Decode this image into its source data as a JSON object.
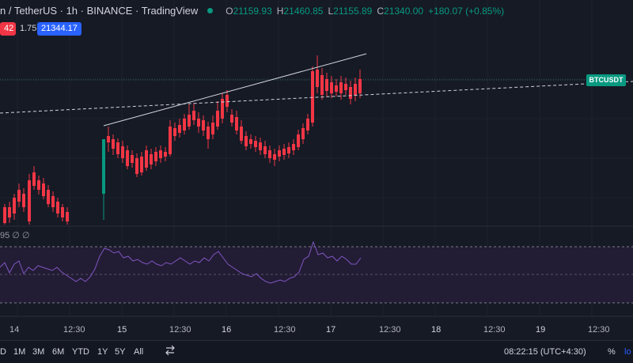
{
  "header": {
    "symbol_title": "n / TetherUS · 1h · BINANCE · TradingView",
    "o_label": "O",
    "o_value": "21159.93",
    "h_label": "H",
    "h_value": "21460.85",
    "l_label": "L",
    "l_value": "21155.89",
    "c_label": "C",
    "c_value": "21340.00",
    "change": "+180.07 (+0.85%)"
  },
  "price_boxes": {
    "sell": "42",
    "spread": "1.75",
    "buy": "21344.17"
  },
  "symbol_badge": "BTCUSDT",
  "rsi_label": "95 ∅ ∅",
  "time_axis": [
    "14",
    "12:30",
    "15",
    "12:30",
    "16",
    "12:30",
    "17",
    "12:30",
    "18",
    "12:30",
    "19",
    "12:30"
  ],
  "toolbar": {
    "ranges": [
      "D",
      "1M",
      "3M",
      "6M",
      "YTD",
      "1Y",
      "5Y",
      "All"
    ],
    "clock": "08:22:15 (UTC+4:30)",
    "percent": "%",
    "log": "lo"
  },
  "colors": {
    "up": "#089981",
    "down": "#f23645",
    "background": "#161a25",
    "rsi_line": "#7e57c2",
    "buy_box": "#2962ff",
    "sell_box": "#f23645"
  },
  "icons": {
    "compare": "compare-icon"
  }
}
